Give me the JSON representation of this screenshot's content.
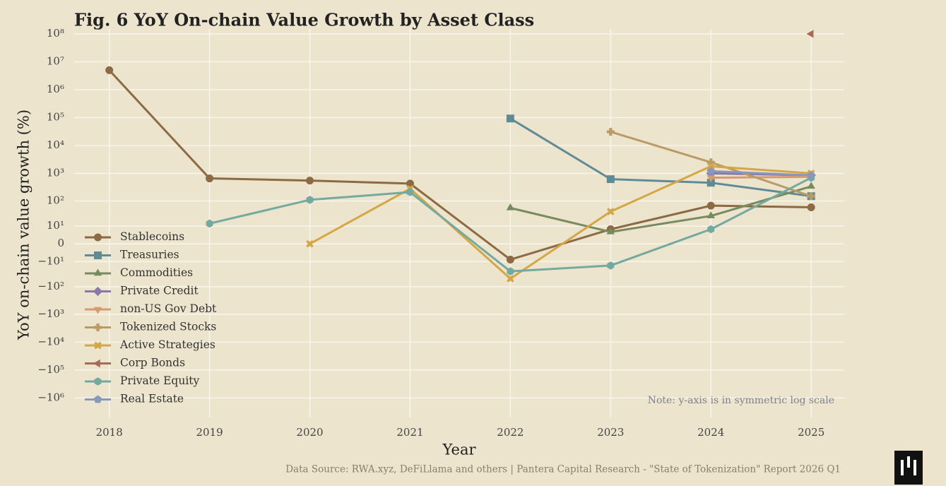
{
  "chart_data": {
    "type": "line",
    "title": "Fig. 6  YoY On-chain Value Growth by Asset Class",
    "xlabel": "Year",
    "ylabel": "YoY on-chain value growth (%)",
    "note": "Note: y-axis is in symmetric log scale",
    "source": "Data Source: RWA.xyz, DeFiLlama and others | Pantera Capital Research - \"State of Tokenization\" Report 2026 Q1",
    "yscale": "symlog",
    "grid": true,
    "legend": "lower left",
    "x": [
      2018,
      2019,
      2020,
      2021,
      2022,
      2023,
      2024,
      2025
    ],
    "xlim": [
      2017.65,
      2025.33
    ],
    "xticks": [
      2018,
      2019,
      2020,
      2021,
      2022,
      2023,
      2024,
      2025
    ],
    "ylim": [
      -5000000,
      150000000
    ],
    "yticks": [
      {
        "value": 100000000,
        "label": "10⁸"
      },
      {
        "value": 10000000,
        "label": "10⁷"
      },
      {
        "value": 1000000,
        "label": "10⁶"
      },
      {
        "value": 100000,
        "label": "10⁵"
      },
      {
        "value": 10000,
        "label": "10⁴"
      },
      {
        "value": 1000,
        "label": "10³"
      },
      {
        "value": 100,
        "label": "10²"
      },
      {
        "value": 10,
        "label": "10¹"
      },
      0,
      {
        "value": -10,
        "label": "−10¹"
      },
      {
        "value": -100,
        "label": "−10²"
      },
      {
        "value": -1000,
        "label": "−10³"
      },
      {
        "value": -10000,
        "label": "−10⁴"
      },
      {
        "value": -100000,
        "label": "−10⁵"
      },
      {
        "value": -1000000,
        "label": "−10⁶"
      }
    ],
    "series": [
      {
        "name": "Stablecoins",
        "color": "#8b6a44",
        "marker": "circle",
        "values": [
          5000000,
          660,
          550,
          430,
          -8,
          7,
          67,
          58
        ]
      },
      {
        "name": "Treasuries",
        "color": "#5f8b97",
        "marker": "square",
        "values": [
          null,
          null,
          null,
          null,
          93000,
          620,
          460,
          150
        ]
      },
      {
        "name": "Commodities",
        "color": "#768b5e",
        "marker": "triangle-up",
        "values": [
          null,
          null,
          null,
          null,
          55,
          5,
          27,
          340
        ]
      },
      {
        "name": "Private Credit",
        "color": "#8a78a8",
        "marker": "diamond",
        "values": [
          null,
          null,
          null,
          null,
          null,
          null,
          1000,
          850
        ]
      },
      {
        "name": "non-US Gov Debt",
        "color": "#d49b72",
        "marker": "triangle-down",
        "values": [
          null,
          null,
          null,
          null,
          null,
          null,
          700,
          750
        ]
      },
      {
        "name": "Tokenized Stocks",
        "color": "#b99b66",
        "marker": "plus",
        "values": [
          null,
          null,
          null,
          null,
          null,
          31000,
          2500,
          150
        ]
      },
      {
        "name": "Active Strategies",
        "color": "#d4a746",
        "marker": "x",
        "values": [
          null,
          null,
          0,
          280,
          -50,
          40,
          1800,
          1000
        ]
      },
      {
        "name": "Corp Bonds",
        "color": "#a86b58",
        "marker": "triangle-left",
        "values": [
          null,
          null,
          null,
          null,
          null,
          null,
          null,
          100000000
        ]
      },
      {
        "name": "Private Equity",
        "color": "#74a9a0",
        "marker": "hexagon",
        "values": [
          null,
          13,
          110,
          210,
          -26,
          -15,
          7,
          700
        ]
      },
      {
        "name": "Real Estate",
        "color": "#8a96bc",
        "marker": "pentagon",
        "values": [
          null,
          null,
          null,
          null,
          null,
          null,
          1200,
          850
        ]
      }
    ]
  }
}
